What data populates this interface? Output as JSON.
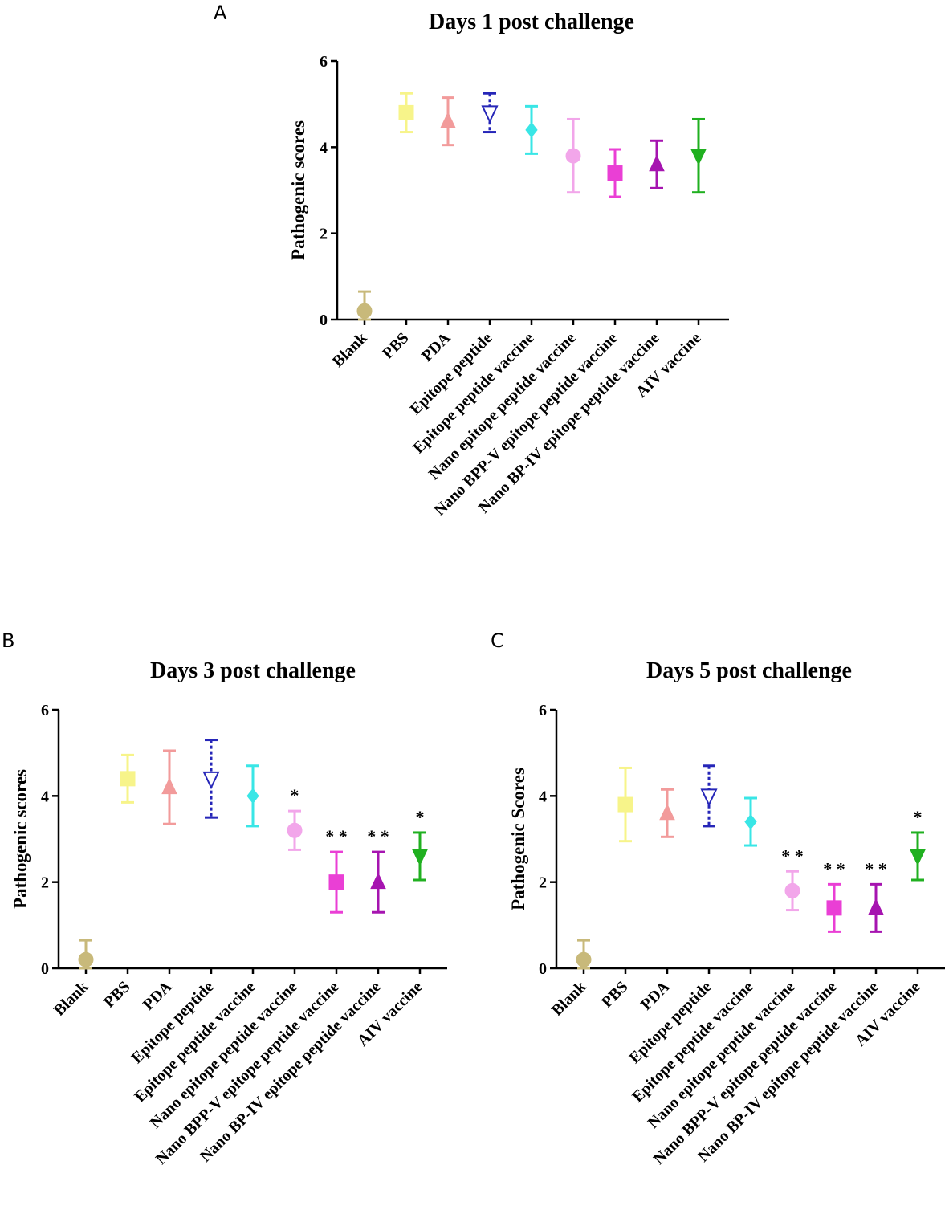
{
  "figure": {
    "colors": [
      "#c8b97a",
      "#f7f48a",
      "#f29b9b",
      "#2626b8",
      "#39e6e6",
      "#f2a6ea",
      "#ea3fd5",
      "#a614b0",
      "#20b020"
    ],
    "markers": [
      "circle",
      "square",
      "triangle-up",
      "triangle-down",
      "diamond",
      "circle",
      "square",
      "triangle-up",
      "triangle-down"
    ]
  },
  "chart_data": [
    {
      "panel": "A",
      "type": "scatter",
      "title": "Days 1 post challenge",
      "xlabel": "",
      "ylabel": "Pathogenic scores",
      "ylim": [
        0,
        6
      ],
      "yticks": [
        "0",
        "2",
        "4",
        "6"
      ],
      "categories": [
        "Blank",
        "PBS",
        "PDA",
        "Epitope peptide",
        "Epitope peptide vaccine",
        "Nano epitope peptide vaccine",
        "Nano BPP-V epitope peptide vaccine",
        "Nano BP-IV epitope peptide vaccine",
        "AIV vaccine"
      ],
      "values": [
        0.2,
        4.8,
        4.6,
        4.8,
        4.4,
        3.8,
        3.4,
        3.6,
        3.8
      ],
      "errors": [
        0.45,
        0.45,
        0.55,
        0.45,
        0.55,
        0.85,
        0.55,
        0.55,
        0.85
      ],
      "significance": [
        "",
        "",
        "",
        "",
        "",
        "",
        "",
        "",
        ""
      ]
    },
    {
      "panel": "B",
      "type": "scatter",
      "title": "Days 3 post challenge",
      "xlabel": "",
      "ylabel": "Pathogenic scores",
      "ylim": [
        0,
        6
      ],
      "yticks": [
        "0",
        "2",
        "4",
        "6"
      ],
      "categories": [
        "Blank",
        "PBS",
        "PDA",
        "Epitope peptide",
        "Epitope peptide vaccine",
        "Nano epitope peptide vaccine",
        "Nano BPP-V epitope peptide vaccine",
        "Nano BP-IV epitope peptide vaccine",
        "AIV vaccine"
      ],
      "values": [
        0.2,
        4.4,
        4.2,
        4.4,
        4.0,
        3.2,
        2.0,
        2.0,
        2.6
      ],
      "errors": [
        0.45,
        0.55,
        0.85,
        0.9,
        0.7,
        0.45,
        0.7,
        0.7,
        0.55
      ],
      "significance": [
        "",
        "",
        "",
        "",
        "",
        "*",
        "* *",
        "* *",
        "*"
      ]
    },
    {
      "panel": "C",
      "type": "scatter",
      "title": "Days 5 post challenge",
      "xlabel": "",
      "ylabel": "Pathogenic Scores",
      "ylim": [
        0,
        6
      ],
      "yticks": [
        "0",
        "2",
        "4",
        "6"
      ],
      "categories": [
        "Blank",
        "PBS",
        "PDA",
        "Epitope peptide",
        "Epitope peptide vaccine",
        "Nano epitope peptide vaccine",
        "Nano BPP-V epitope peptide vaccine",
        "Nano BP-IV epitope peptide vaccine",
        "AIV vaccine"
      ],
      "values": [
        0.2,
        3.8,
        3.6,
        4.0,
        3.4,
        1.8,
        1.4,
        1.4,
        2.6
      ],
      "errors": [
        0.45,
        0.85,
        0.55,
        0.7,
        0.55,
        0.45,
        0.55,
        0.55,
        0.55
      ],
      "significance": [
        "",
        "",
        "",
        "",
        "",
        "* *",
        "* *",
        "* *",
        "*"
      ]
    }
  ]
}
